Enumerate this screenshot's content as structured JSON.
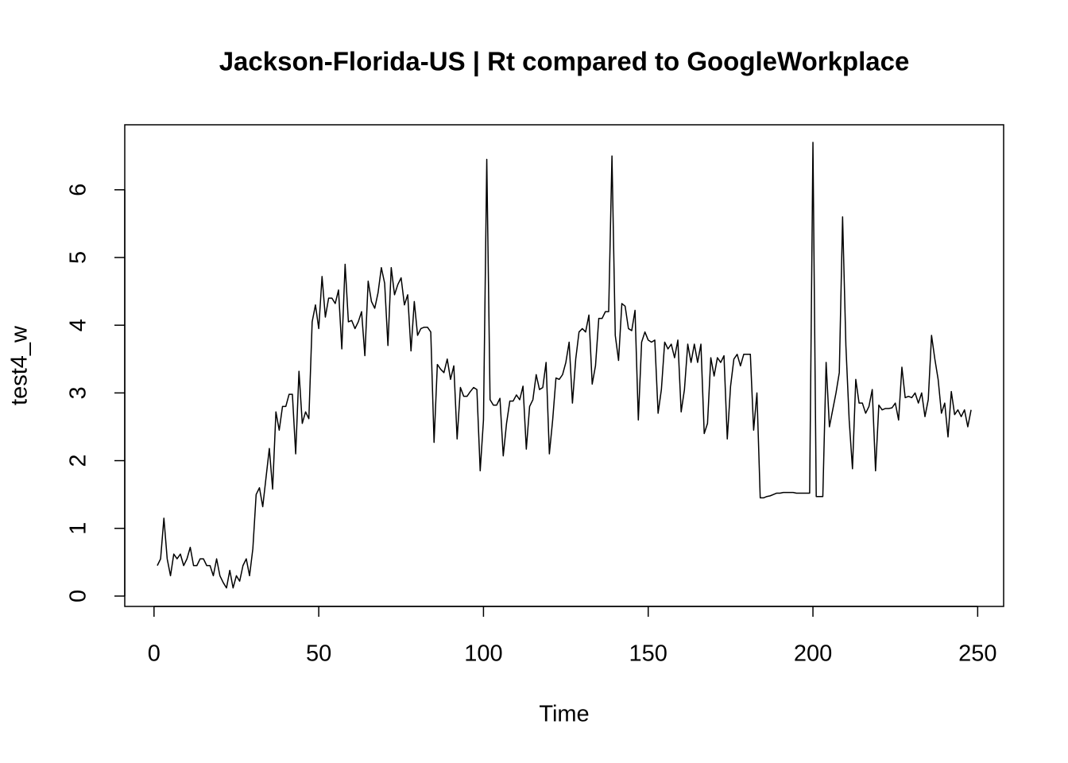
{
  "chart_data": {
    "type": "line",
    "title": "Jackson-Florida-US | Rt compared to GoogleWorkplace",
    "xlabel": "Time",
    "ylabel": "test4_w",
    "color": "#000000",
    "xlim": [
      -8.88,
      257.88
    ],
    "ylim": [
      -0.153,
      6.96
    ],
    "xticks": [
      0,
      50,
      100,
      150,
      200,
      250
    ],
    "yticks": [
      0,
      1,
      2,
      3,
      4,
      5,
      6
    ],
    "x": [
      1,
      2,
      3,
      4,
      5,
      6,
      7,
      8,
      9,
      10,
      11,
      12,
      13,
      14,
      15,
      16,
      17,
      18,
      19,
      20,
      21,
      22,
      23,
      24,
      25,
      26,
      27,
      28,
      29,
      30,
      31,
      32,
      33,
      34,
      35,
      36,
      37,
      38,
      39,
      40,
      41,
      42,
      43,
      44,
      45,
      46,
      47,
      48,
      49,
      50,
      51,
      52,
      53,
      54,
      55,
      56,
      57,
      58,
      59,
      60,
      61,
      62,
      63,
      64,
      65,
      66,
      67,
      68,
      69,
      70,
      71,
      72,
      73,
      74,
      75,
      76,
      77,
      78,
      79,
      80,
      81,
      82,
      83,
      84,
      85,
      86,
      87,
      88,
      89,
      90,
      91,
      92,
      93,
      94,
      95,
      96,
      97,
      98,
      99,
      100,
      101,
      102,
      103,
      104,
      105,
      106,
      107,
      108,
      109,
      110,
      111,
      112,
      113,
      114,
      115,
      116,
      117,
      118,
      119,
      120,
      121,
      122,
      123,
      124,
      125,
      126,
      127,
      128,
      129,
      130,
      131,
      132,
      133,
      134,
      135,
      136,
      137,
      138,
      139,
      140,
      141,
      142,
      143,
      144,
      145,
      146,
      147,
      148,
      149,
      150,
      151,
      152,
      153,
      154,
      155,
      156,
      157,
      158,
      159,
      160,
      161,
      162,
      163,
      164,
      165,
      166,
      167,
      168,
      169,
      170,
      171,
      172,
      173,
      174,
      175,
      176,
      177,
      178,
      179,
      180,
      181,
      182,
      183,
      184,
      185,
      186,
      187,
      188,
      189,
      190,
      191,
      192,
      193,
      194,
      195,
      196,
      197,
      198,
      199,
      200,
      201,
      202,
      203,
      204,
      205,
      206,
      207,
      208,
      209,
      210,
      211,
      212,
      213,
      214,
      215,
      216,
      217,
      218,
      219,
      220,
      221,
      222,
      223,
      224,
      225,
      226,
      227,
      228,
      229,
      230,
      231,
      232,
      233,
      234,
      235,
      236,
      237,
      238,
      239,
      240,
      241,
      242,
      243,
      244,
      245,
      246,
      247,
      248
    ],
    "values": [
      0.45,
      0.55,
      1.15,
      0.55,
      0.3,
      0.62,
      0.55,
      0.62,
      0.45,
      0.55,
      0.72,
      0.45,
      0.45,
      0.55,
      0.55,
      0.45,
      0.45,
      0.3,
      0.55,
      0.3,
      0.2,
      0.12,
      0.38,
      0.12,
      0.3,
      0.22,
      0.45,
      0.55,
      0.3,
      0.7,
      1.5,
      1.6,
      1.32,
      1.75,
      2.18,
      1.58,
      2.72,
      2.45,
      2.8,
      2.8,
      2.98,
      2.98,
      2.1,
      3.32,
      2.55,
      2.72,
      2.62,
      4.05,
      4.3,
      3.95,
      4.72,
      4.12,
      4.4,
      4.4,
      4.32,
      4.52,
      3.65,
      4.9,
      4.05,
      4.07,
      3.95,
      4.05,
      4.2,
      3.55,
      4.65,
      4.35,
      4.25,
      4.48,
      4.85,
      4.62,
      3.7,
      4.85,
      4.45,
      4.6,
      4.7,
      4.3,
      4.45,
      3.62,
      4.35,
      3.85,
      3.95,
      3.97,
      3.97,
      3.9,
      2.27,
      3.42,
      3.35,
      3.3,
      3.5,
      3.2,
      3.4,
      2.32,
      3.08,
      2.95,
      2.95,
      3.02,
      3.08,
      3.05,
      1.85,
      2.6,
      6.45,
      2.9,
      2.82,
      2.82,
      2.92,
      2.07,
      2.55,
      2.88,
      2.88,
      2.97,
      2.9,
      3.1,
      2.17,
      2.8,
      2.9,
      3.27,
      3.05,
      3.08,
      3.45,
      2.1,
      2.6,
      3.22,
      3.2,
      3.27,
      3.45,
      3.75,
      2.85,
      3.5,
      3.9,
      3.95,
      3.9,
      4.15,
      3.13,
      3.4,
      4.1,
      4.1,
      4.2,
      4.2,
      6.5,
      3.85,
      3.48,
      4.32,
      4.28,
      3.95,
      3.92,
      4.22,
      2.6,
      3.75,
      3.9,
      3.78,
      3.75,
      3.78,
      2.7,
      3.05,
      3.75,
      3.65,
      3.72,
      3.52,
      3.78,
      2.72,
      3.05,
      3.72,
      3.45,
      3.72,
      3.45,
      3.72,
      2.4,
      2.55,
      3.52,
      3.25,
      3.52,
      3.45,
      3.55,
      2.32,
      3.1,
      3.5,
      3.57,
      3.4,
      3.57,
      3.57,
      3.57,
      2.45,
      3.0,
      1.45,
      1.45,
      1.47,
      1.48,
      1.5,
      1.52,
      1.52,
      1.53,
      1.53,
      1.53,
      1.53,
      1.52,
      1.52,
      1.52,
      1.52,
      1.52,
      6.7,
      1.47,
      1.47,
      1.47,
      3.45,
      2.5,
      2.75,
      3.0,
      3.3,
      5.6,
      3.7,
      2.6,
      1.88,
      3.2,
      2.85,
      2.85,
      2.7,
      2.8,
      3.05,
      1.85,
      2.82,
      2.75,
      2.77,
      2.77,
      2.78,
      2.85,
      2.6,
      3.38,
      2.93,
      2.95,
      2.93,
      3.0,
      2.85,
      3.0,
      2.65,
      2.9,
      3.85,
      3.5,
      3.2,
      2.7,
      2.85,
      2.35,
      3.02,
      2.68,
      2.75,
      2.65,
      2.75,
      2.5,
      2.75
    ]
  }
}
